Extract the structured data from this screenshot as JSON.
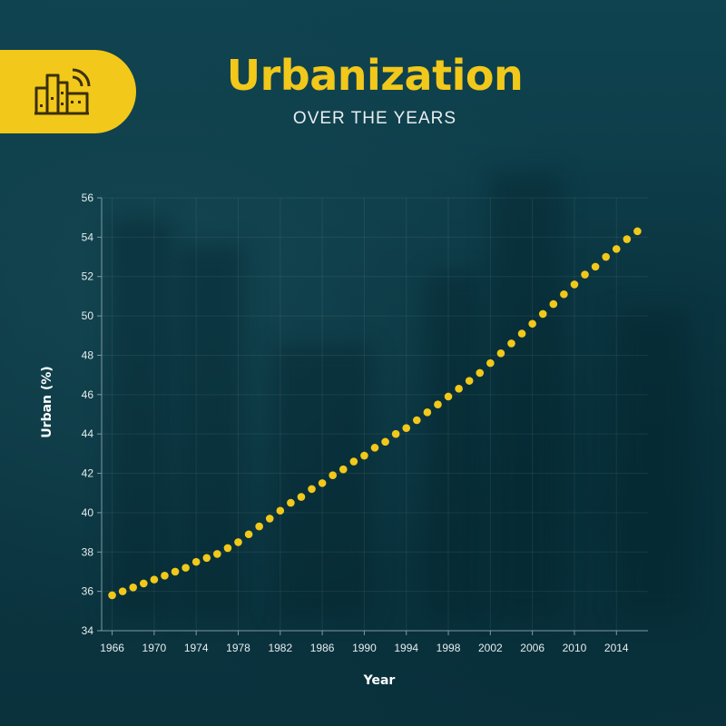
{
  "header": {
    "title": "Urbanization",
    "subtitle": "OVER THE YEARS",
    "icon": "city-buildings-icon"
  },
  "colors": {
    "accent": "#f2c81a",
    "background": "#0d3a46",
    "axis": "#7f9aa2"
  },
  "chart_data": {
    "type": "scatter",
    "title": "Urbanization",
    "subtitle": "OVER THE YEARS",
    "xlabel": "Year",
    "ylabel": "Urban (%)",
    "xlim": [
      1965,
      2017
    ],
    "ylim": [
      34,
      56
    ],
    "x_ticks": [
      "1966",
      "1970",
      "1974",
      "1978",
      "1982",
      "1986",
      "1990",
      "1994",
      "1998",
      "2002",
      "2006",
      "2010",
      "2014"
    ],
    "y_ticks": [
      "34",
      "36",
      "38",
      "40",
      "42",
      "44",
      "46",
      "48",
      "50",
      "52",
      "54",
      "56"
    ],
    "grid": true,
    "series": [
      {
        "x": [
          1966,
          1967,
          1968,
          1969,
          1970,
          1971,
          1972,
          1973,
          1974,
          1975,
          1976,
          1977,
          1978,
          1979,
          1980,
          1981,
          1982,
          1983,
          1984,
          1985,
          1986,
          1987,
          1988,
          1989,
          1990,
          1991,
          1992,
          1993,
          1994,
          1995,
          1996,
          1997,
          1998,
          1999,
          2000,
          2001,
          2002,
          2003,
          2004,
          2005,
          2006,
          2007,
          2008,
          2009,
          2010,
          2011,
          2012,
          2013,
          2014,
          2015,
          2016
        ],
        "values": [
          35.8,
          36.0,
          36.2,
          36.4,
          36.6,
          36.8,
          37.0,
          37.2,
          37.5,
          37.7,
          37.9,
          38.2,
          38.5,
          38.9,
          39.3,
          39.7,
          40.1,
          40.5,
          40.8,
          41.2,
          41.5,
          41.9,
          42.2,
          42.6,
          42.9,
          43.3,
          43.6,
          44.0,
          44.3,
          44.7,
          45.1,
          45.5,
          45.9,
          46.3,
          46.7,
          47.1,
          47.6,
          48.1,
          48.6,
          49.1,
          49.6,
          50.1,
          50.6,
          51.1,
          51.6,
          52.1,
          52.5,
          53.0,
          53.4,
          53.9,
          54.3
        ]
      }
    ]
  }
}
